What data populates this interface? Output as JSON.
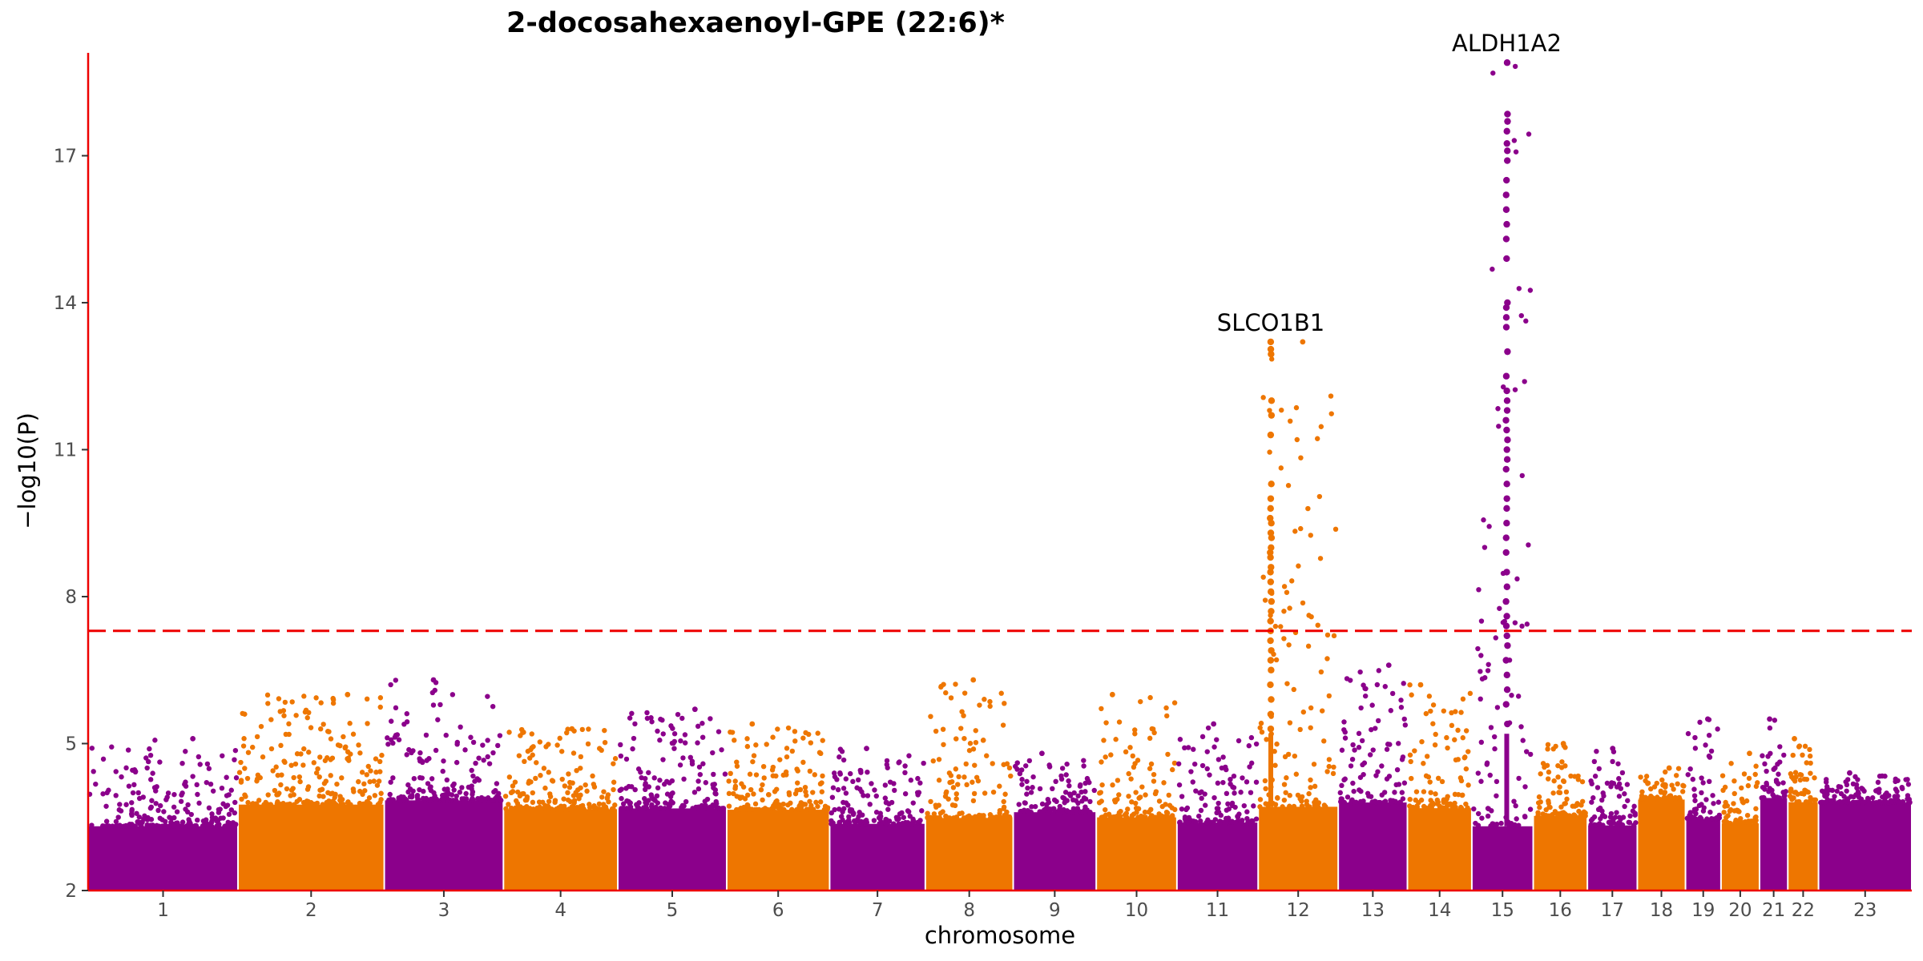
{
  "chart_data": {
    "type": "scatter",
    "subtype": "manhattan",
    "title": "2-docosahexaenoyl-GPE (22:6)*",
    "xlabel": "chromosome",
    "ylabel": "−log10(P)",
    "ylim": [
      2,
      19.1
    ],
    "yticks": [
      2,
      5,
      8,
      11,
      14,
      17
    ],
    "significance_threshold": 7.3,
    "threshold_color": "#ee0000",
    "axis_color": "#ee0000",
    "colors": [
      "#8b008b",
      "#ee7600"
    ],
    "grid": false,
    "chromosomes": [
      {
        "label": "1",
        "length": 249,
        "max": 5.1
      },
      {
        "label": "",
        "length": 0,
        "max": 0
      },
      {
        "label": "2",
        "length": 243,
        "max": 6.0
      },
      {
        "label": "",
        "length": 0,
        "max": 0
      },
      {
        "label": "3",
        "length": 198,
        "max": 6.3
      },
      {
        "label": "4",
        "length": 190,
        "max": 5.3
      },
      {
        "label": "5",
        "length": 181,
        "max": 5.7
      },
      {
        "label": "6",
        "length": 171,
        "max": 5.4
      },
      {
        "label": "7",
        "length": 159,
        "max": 4.9
      },
      {
        "label": "8",
        "length": 146,
        "max": 6.3
      },
      {
        "label": "9",
        "length": 138,
        "max": 4.8
      },
      {
        "label": "10",
        "length": 134,
        "max": 6.0
      },
      {
        "label": "11",
        "length": 135,
        "max": 5.4
      },
      {
        "label": "12",
        "length": 133,
        "max": 13.2
      },
      {
        "label": "13",
        "length": 115,
        "max": 6.6
      },
      {
        "label": "14",
        "length": 107,
        "max": 6.2
      },
      {
        "label": "15",
        "length": 102,
        "max": 18.9
      },
      {
        "label": "16",
        "length": 90,
        "max": 5.0
      },
      {
        "label": "17",
        "length": 83,
        "max": 4.9
      },
      {
        "label": "18",
        "length": 80,
        "max": 4.5
      },
      {
        "label": "19",
        "length": 59,
        "max": 5.5
      },
      {
        "label": "20",
        "length": 64,
        "max": 4.8
      },
      {
        "label": "21",
        "length": 47,
        "max": 5.5
      },
      {
        "label": "22",
        "length": 51,
        "max": 5.1
      },
      {
        "label": "23",
        "length": 155,
        "max": 4.4
      }
    ],
    "peaks": [
      {
        "chromosome": "12",
        "gene": "SLCO1B1",
        "position_mb": 21,
        "top": 13.2,
        "values": [
          13.2,
          13.05,
          12.95,
          12.0,
          11.7,
          11.3,
          10.3,
          10.0,
          9.8,
          9.6,
          9.5,
          9.3,
          9.2,
          9.0,
          8.9,
          8.8,
          8.6,
          8.5,
          8.3,
          8.1,
          7.9,
          7.7,
          7.5,
          7.3,
          7.1,
          6.9,
          6.7,
          6.5,
          6.2,
          5.9,
          5.6,
          5.3
        ]
      },
      {
        "chromosome": "15",
        "gene": "ALDH1A2",
        "position_mb": 58,
        "top": 18.9,
        "values": [
          18.9,
          17.85,
          17.7,
          17.5,
          17.25,
          17.1,
          16.9,
          16.5,
          16.2,
          15.9,
          15.6,
          15.3,
          14.9,
          14.0,
          13.9,
          13.7,
          13.5,
          13.0,
          12.5,
          12.2,
          12.0,
          11.8,
          11.6,
          11.4,
          11.2,
          11.0,
          10.8,
          10.6,
          10.3,
          10.0,
          9.8,
          9.5,
          9.2,
          8.9,
          8.5,
          8.2,
          7.9,
          7.6,
          7.4,
          7.2,
          7.0,
          6.7,
          6.4,
          6.1,
          5.8,
          5.4
        ]
      }
    ]
  }
}
